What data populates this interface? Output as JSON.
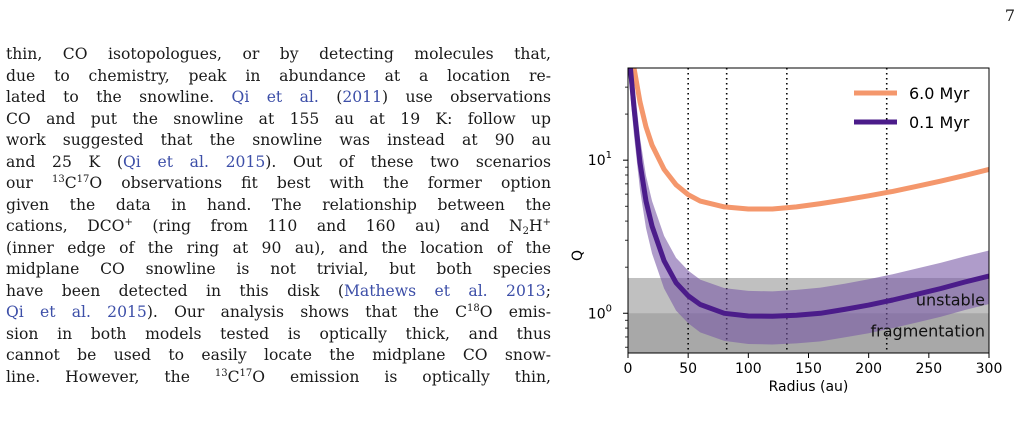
{
  "page": {
    "number": "7"
  },
  "text_lines": [
    [
      {
        "t": "thin, CO isotopologues, or by detecting molecules that,"
      }
    ],
    [
      {
        "t": "due to chemistry, peak in abundance at a location re-"
      }
    ],
    [
      {
        "t": "lated to the snowline. "
      },
      {
        "t": "Qi et al.",
        "c": true
      },
      {
        "t": " ("
      },
      {
        "t": "2011",
        "c": true
      },
      {
        "t": ") use observations"
      }
    ],
    [
      {
        "t": "CO and put the snowline at 155 au at 19 K: follow up"
      }
    ],
    [
      {
        "t": "work suggested that the snowline was instead at 90 au"
      }
    ],
    [
      {
        "t": "and 25 K ("
      },
      {
        "t": "Qi et al. 2015",
        "c": true
      },
      {
        "t": "). Out of these two scenarios"
      }
    ],
    [
      {
        "t": "our "
      },
      {
        "t": "13",
        "sup": true
      },
      {
        "t": "C"
      },
      {
        "t": "17",
        "sup": true
      },
      {
        "t": "O observations fit best with the former option"
      }
    ],
    [
      {
        "t": "given the data in hand. The relationship between the"
      }
    ],
    [
      {
        "t": "cations, DCO"
      },
      {
        "t": "+",
        "sup": true
      },
      {
        "t": " (ring from 110 and 160 au) and N"
      },
      {
        "t": "2",
        "sub": true
      },
      {
        "t": "H"
      },
      {
        "t": "+",
        "sup": true
      }
    ],
    [
      {
        "t": "(inner edge of the ring at 90 au), and the location of the"
      }
    ],
    [
      {
        "t": "midplane CO snowline is not trivial, but both species"
      }
    ],
    [
      {
        "t": "have been detected in this disk ("
      },
      {
        "t": "Mathews et al. 2013",
        "c": true
      },
      {
        "t": ";"
      }
    ],
    [
      {
        "t": "Qi et al. 2015",
        "c": true
      },
      {
        "t": "). Our analysis shows that the C"
      },
      {
        "t": "18",
        "sup": true
      },
      {
        "t": "O emis-"
      }
    ],
    [
      {
        "t": "sion in both models tested is optically thick, and thus"
      }
    ],
    [
      {
        "t": "cannot be used to easily locate the midplane CO snow-"
      }
    ],
    [
      {
        "t": "line. However, the "
      },
      {
        "t": "13",
        "sup": true
      },
      {
        "t": "C"
      },
      {
        "t": "17",
        "sup": true
      },
      {
        "t": "O emission is optically thin,"
      }
    ]
  ],
  "chart_data": {
    "type": "line",
    "xlabel": "Radius (au)",
    "ylabel": "Q",
    "xlim": [
      0,
      300
    ],
    "ylim": [
      0.55,
      40
    ],
    "yscale": "log",
    "grid": false,
    "legend": "top-right",
    "x_ticks": [
      0,
      50,
      100,
      150,
      200,
      250,
      300
    ],
    "y_ticks": [
      {
        "v": 1,
        "base": "10",
        "exp": "0"
      },
      {
        "v": 10,
        "base": "10",
        "exp": "1"
      }
    ],
    "vlines": [
      50,
      82,
      132,
      215
    ],
    "regions": [
      {
        "ymin": 0.55,
        "ymax": 1.7,
        "color": "#c0c0c0"
      },
      {
        "ymin": 0.55,
        "ymax": 1.0,
        "color": "#a8a8a8"
      }
    ],
    "region_labels": [
      "unstable",
      "fragmentation"
    ],
    "series": [
      {
        "name": "6.0 Myr",
        "color": "#f4976c",
        "x": [
          0,
          5,
          10,
          15,
          20,
          30,
          40,
          50,
          60,
          80,
          100,
          120,
          140,
          160,
          180,
          200,
          220,
          240,
          260,
          280,
          300
        ],
        "y": [
          80,
          40,
          24,
          16.5,
          12.5,
          8.7,
          6.9,
          5.95,
          5.4,
          4.95,
          4.8,
          4.8,
          4.95,
          5.2,
          5.5,
          5.85,
          6.25,
          6.75,
          7.3,
          7.95,
          8.7
        ]
      },
      {
        "name": "0.1 Myr",
        "color": "#4b1c8a",
        "band_color": "#7a5aa6",
        "x": [
          0,
          5,
          10,
          15,
          20,
          30,
          40,
          50,
          60,
          80,
          100,
          120,
          140,
          160,
          180,
          200,
          220,
          240,
          260,
          280,
          300
        ],
        "y": [
          60,
          22,
          9.6,
          5.4,
          3.7,
          2.2,
          1.58,
          1.3,
          1.14,
          1.0,
          0.96,
          0.955,
          0.97,
          1.0,
          1.06,
          1.13,
          1.22,
          1.33,
          1.45,
          1.6,
          1.75
        ],
        "y_upper": [
          90,
          33,
          14,
          7.9,
          5.4,
          3.2,
          2.3,
          1.9,
          1.66,
          1.46,
          1.4,
          1.39,
          1.42,
          1.47,
          1.56,
          1.67,
          1.8,
          1.96,
          2.14,
          2.35,
          2.57
        ],
        "y_lower": [
          40,
          14.5,
          6.4,
          3.6,
          2.45,
          1.45,
          1.04,
          0.86,
          0.75,
          0.66,
          0.63,
          0.625,
          0.635,
          0.655,
          0.695,
          0.74,
          0.8,
          0.87,
          0.95,
          1.05,
          1.15
        ]
      }
    ]
  }
}
